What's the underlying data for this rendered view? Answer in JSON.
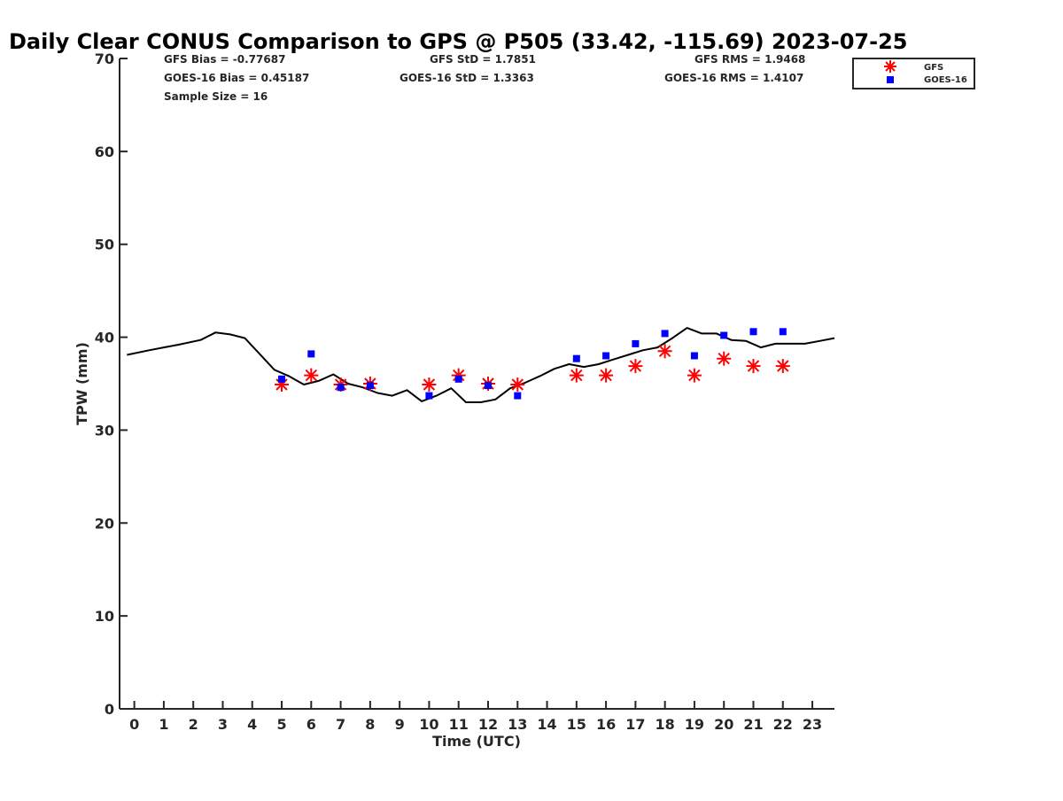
{
  "chart_data": {
    "type": "line",
    "title": "Daily Clear CONUS Comparison to GPS @ P505 (33.42, -115.69) 2023-07-25",
    "xlabel": "Time (UTC)",
    "ylabel": "TPW (mm)",
    "xlim": [
      -0.5,
      23.75
    ],
    "ylim": [
      0,
      70
    ],
    "x_ticks": [
      0,
      1,
      2,
      3,
      4,
      5,
      6,
      7,
      8,
      9,
      10,
      11,
      12,
      13,
      14,
      15,
      16,
      17,
      18,
      19,
      20,
      21,
      22,
      23
    ],
    "y_ticks": [
      0,
      10,
      20,
      30,
      40,
      50,
      60,
      70
    ],
    "grid": false,
    "legend_position": "top-right",
    "stats": [
      {
        "text": "GFS Bias = -0.77687"
      },
      {
        "text": "GFS StD = 1.7851"
      },
      {
        "text": "GFS RMS = 1.9468"
      },
      {
        "text": "GOES-16 Bias = 0.45187"
      },
      {
        "text": "GOES-16 StD = 1.3363"
      },
      {
        "text": "GOES-16 RMS = 1.4107"
      },
      {
        "text": "Sample Size = 16"
      }
    ],
    "series": [
      {
        "name": "GPS",
        "kind": "line",
        "color": "#000000",
        "x": [
          -0.25,
          0.5,
          1.0,
          1.5,
          2.25,
          2.75,
          3.25,
          3.75,
          4.25,
          4.75,
          5.25,
          5.75,
          6.25,
          6.75,
          7.25,
          7.75,
          8.25,
          8.75,
          9.25,
          9.75,
          10.25,
          10.75,
          11.25,
          11.75,
          12.25,
          12.75,
          13.25,
          13.75,
          14.25,
          14.75,
          15.25,
          15.75,
          16.25,
          16.75,
          17.25,
          17.75,
          18.25,
          18.75,
          19.25,
          19.75,
          20.25,
          20.75,
          21.25,
          21.75,
          22.25,
          22.75,
          23.25,
          23.75
        ],
        "y": [
          38.1,
          38.6,
          38.9,
          39.2,
          39.7,
          40.5,
          40.3,
          39.9,
          38.2,
          36.5,
          35.8,
          34.9,
          35.3,
          36.0,
          35.0,
          34.6,
          34.0,
          33.7,
          34.3,
          33.1,
          33.7,
          34.5,
          33.0,
          33.0,
          33.3,
          34.5,
          35.1,
          35.8,
          36.6,
          37.1,
          36.8,
          37.1,
          37.6,
          38.1,
          38.6,
          38.9,
          39.9,
          41.0,
          40.4,
          40.4,
          39.7,
          39.6,
          38.9,
          39.3,
          39.3,
          39.3,
          39.6,
          39.9
        ]
      },
      {
        "name": "GFS",
        "kind": "marker",
        "marker": "asterisk",
        "color": "#ff0000",
        "x": [
          5,
          6,
          7,
          8,
          10,
          11,
          12,
          13,
          15,
          16,
          17,
          18,
          19,
          20,
          21,
          22
        ],
        "y": [
          34.9,
          35.9,
          34.9,
          35.0,
          34.9,
          35.9,
          35.0,
          34.9,
          35.9,
          35.9,
          36.9,
          38.5,
          35.9,
          37.7,
          36.9,
          36.9
        ]
      },
      {
        "name": "GOES-16",
        "kind": "marker",
        "marker": "square",
        "color": "#0000ff",
        "x": [
          5,
          6,
          7,
          8,
          10,
          11,
          12,
          13,
          15,
          16,
          17,
          18,
          19,
          20,
          21,
          22
        ],
        "y": [
          35.5,
          38.2,
          34.6,
          34.8,
          33.7,
          35.5,
          34.8,
          33.7,
          37.7,
          38.0,
          39.3,
          40.4,
          38.0,
          40.2,
          40.6,
          40.6
        ]
      }
    ]
  }
}
